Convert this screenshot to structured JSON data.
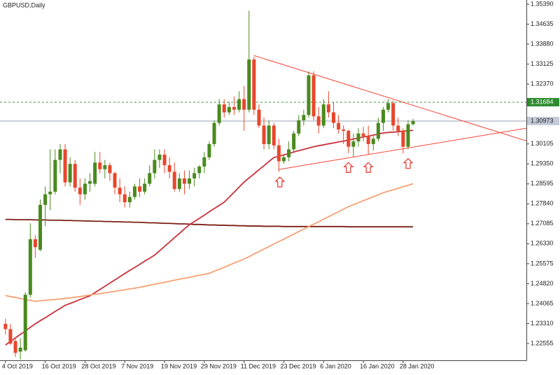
{
  "chart_data": {
    "type": "candlestick",
    "title": "GBPUSD,Daily",
    "categories": [
      "4 Oct 2019",
      null,
      null,
      null,
      null,
      null,
      null,
      null,
      "16 Oct 2019",
      null,
      null,
      null,
      null,
      null,
      null,
      null,
      "28 Oct 2019",
      null,
      null,
      null,
      null,
      null,
      null,
      null,
      "7 Nov 2019",
      null,
      null,
      null,
      null,
      null,
      null,
      null,
      "19 Nov 2019",
      null,
      null,
      null,
      null,
      null,
      null,
      null,
      "29 Nov 2019",
      null,
      null,
      null,
      null,
      null,
      null,
      null,
      "11 Dec 2019",
      null,
      null,
      null,
      null,
      null,
      null,
      null,
      "23 Dec 2019",
      null,
      null,
      null,
      null,
      null,
      null,
      null,
      "6 Jan 2020",
      null,
      null,
      null,
      null,
      null,
      null,
      null,
      "16 Jan 2020",
      null,
      null,
      null,
      null,
      null,
      null,
      null,
      "28 Jan 2020",
      null,
      null
    ],
    "ohlc": {
      "up_color": "#4a8a1e",
      "down_color": "#e8462c",
      "open": [
        1.233,
        1.231,
        1.2265,
        1.2225,
        1.223,
        1.244,
        1.265,
        1.261,
        1.278,
        1.282,
        1.283,
        1.295,
        1.299,
        1.2865,
        1.2935,
        1.2845,
        1.282,
        1.286,
        1.286,
        1.294,
        1.2915,
        1.293,
        1.29,
        1.2845,
        1.282,
        1.279,
        1.281,
        1.285,
        1.283,
        1.286,
        1.29,
        1.295,
        1.297,
        1.293,
        1.2905,
        1.284,
        1.288,
        1.286,
        1.288,
        1.29,
        1.2925,
        1.296,
        1.301,
        1.309,
        1.316,
        1.313,
        1.315,
        1.314,
        1.318,
        1.314,
        1.333,
        1.314,
        1.308,
        1.301,
        1.308,
        1.3005,
        1.2945,
        1.296,
        1.299,
        1.305,
        1.31,
        1.312,
        1.327,
        1.3115,
        1.308,
        1.316,
        1.313,
        1.309,
        1.3065,
        1.306,
        1.3,
        1.302,
        1.305,
        1.304,
        1.301,
        1.303,
        1.309,
        1.314,
        1.3165,
        1.308,
        1.306,
        1.3,
        1.3085
      ],
      "high": [
        1.235,
        1.233,
        1.228,
        1.2275,
        1.245,
        1.271,
        1.2665,
        1.28,
        1.285,
        1.299,
        1.299,
        1.301,
        1.301,
        1.296,
        1.295,
        1.288,
        1.288,
        1.29,
        1.298,
        1.298,
        1.295,
        1.294,
        1.2905,
        1.288,
        1.285,
        1.283,
        1.286,
        1.288,
        1.288,
        1.293,
        1.299,
        1.299,
        1.299,
        1.296,
        1.294,
        1.29,
        1.291,
        1.291,
        1.292,
        1.293,
        1.298,
        1.302,
        1.31,
        1.318,
        1.318,
        1.317,
        1.319,
        1.321,
        1.323,
        1.3515,
        1.334,
        1.316,
        1.311,
        1.31,
        1.309,
        1.303,
        1.297,
        1.302,
        1.306,
        1.312,
        1.314,
        1.3285,
        1.3285,
        1.315,
        1.318,
        1.321,
        1.317,
        1.312,
        1.308,
        1.3065,
        1.305,
        1.307,
        1.3075,
        1.308,
        1.304,
        1.311,
        1.315,
        1.318,
        1.3175,
        1.311,
        1.307,
        1.31,
        1.3105
      ],
      "low": [
        1.229,
        1.225,
        1.2205,
        1.2195,
        1.2225,
        1.243,
        1.258,
        1.2605,
        1.27,
        1.276,
        1.282,
        1.29,
        1.285,
        1.285,
        1.283,
        1.278,
        1.28,
        1.283,
        1.285,
        1.29,
        1.288,
        1.287,
        1.282,
        1.279,
        1.277,
        1.277,
        1.28,
        1.281,
        1.282,
        1.285,
        1.288,
        1.292,
        1.29,
        1.288,
        1.283,
        1.283,
        1.282,
        1.284,
        1.285,
        1.288,
        1.29,
        1.295,
        1.3,
        1.308,
        1.311,
        1.312,
        1.312,
        1.313,
        1.306,
        1.313,
        1.312,
        1.307,
        1.299,
        1.299,
        1.299,
        1.2905,
        1.2935,
        1.2945,
        1.298,
        1.304,
        1.308,
        1.311,
        1.31,
        1.305,
        1.307,
        1.311,
        1.307,
        1.305,
        1.301,
        1.2975,
        1.296,
        1.3,
        1.302,
        1.297,
        1.2985,
        1.302,
        1.306,
        1.313,
        1.306,
        1.304,
        1.2975,
        1.299,
        1.308
      ],
      "close": [
        1.231,
        1.2255,
        1.222,
        1.224,
        1.244,
        1.265,
        1.262,
        1.278,
        1.282,
        1.283,
        1.295,
        1.299,
        1.2865,
        1.2935,
        1.2845,
        1.282,
        1.286,
        1.287,
        1.294,
        1.2915,
        1.293,
        1.29,
        1.2845,
        1.282,
        1.279,
        1.281,
        1.285,
        1.283,
        1.286,
        1.29,
        1.295,
        1.297,
        1.293,
        1.2905,
        1.284,
        1.288,
        1.286,
        1.288,
        1.29,
        1.2925,
        1.296,
        1.301,
        1.309,
        1.316,
        1.313,
        1.315,
        1.314,
        1.318,
        1.314,
        1.333,
        1.314,
        1.308,
        1.301,
        1.308,
        1.3005,
        1.2945,
        1.296,
        1.299,
        1.305,
        1.31,
        1.312,
        1.327,
        1.3115,
        1.308,
        1.316,
        1.313,
        1.309,
        1.3065,
        1.306,
        1.3,
        1.302,
        1.305,
        1.304,
        1.301,
        1.303,
        1.309,
        1.314,
        1.3165,
        1.308,
        1.306,
        1.3,
        1.3085,
        1.3097
      ]
    },
    "moving_averages": [
      {
        "color": "#7b1e12",
        "values": [
          1.2725,
          1.2725,
          1.2724,
          1.2724,
          1.2724,
          1.2724,
          1.2723,
          1.2723,
          1.2723,
          1.2722,
          1.2722,
          1.2722,
          1.2721,
          1.2721,
          1.272,
          1.272,
          1.2719,
          1.2719,
          1.2718,
          1.2718,
          1.2717,
          1.2717,
          1.2716,
          1.2716,
          1.2715,
          1.2715,
          1.2714,
          1.2714,
          1.2713,
          1.2712,
          1.2712,
          1.2711,
          1.271,
          1.271,
          1.2709,
          1.2708,
          1.2708,
          1.2707,
          1.2706,
          1.2706,
          1.2705,
          1.2704,
          1.2704,
          1.2703,
          1.2703,
          1.2702,
          1.2702,
          1.2701,
          1.2701,
          1.27,
          1.27,
          1.27,
          1.2699,
          1.2699,
          1.2699,
          1.2699,
          1.2698,
          1.2698,
          1.2698,
          1.2698,
          1.2698,
          1.2698,
          1.2698,
          1.2698,
          1.2698,
          1.2698,
          1.2698,
          1.2698,
          1.2698,
          1.2697,
          1.2697,
          1.2697,
          1.2697,
          1.2697,
          1.2697,
          1.2697,
          1.2697,
          1.2697,
          1.2697,
          1.2697,
          1.2697,
          1.2697,
          1.2697
        ]
      },
      {
        "color": "#c8323a",
        "values": [
          1.225,
          1.2263,
          1.2277,
          1.229,
          1.2303,
          1.2317,
          1.233,
          1.2342,
          1.2353,
          1.2365,
          1.2377,
          1.2388,
          1.24,
          1.2407,
          1.2414,
          1.2422,
          1.2429,
          1.2436,
          1.2448,
          1.246,
          1.2472,
          1.2484,
          1.2496,
          1.2508,
          1.252,
          1.2532,
          1.2543,
          1.2555,
          1.2567,
          1.2578,
          1.259,
          1.2606,
          1.2623,
          1.2639,
          1.2656,
          1.2672,
          1.2689,
          1.2705,
          1.2717,
          1.2729,
          1.2741,
          1.2754,
          1.2766,
          1.2778,
          1.279,
          1.2809,
          1.2828,
          1.2847,
          1.2866,
          1.2882,
          1.2897,
          1.2913,
          1.2928,
          1.2944,
          1.2959,
          1.2964,
          1.2969,
          1.2974,
          1.298,
          1.2985,
          1.299,
          1.2995,
          1.3,
          1.3004,
          1.3007,
          1.3011,
          1.3014,
          1.3018,
          1.3021,
          1.3025,
          1.3029,
          1.3033,
          1.3037,
          1.304,
          1.3044,
          1.3048,
          1.3052,
          1.3054,
          1.3055,
          1.3057,
          1.3059,
          1.306,
          1.3062
        ]
      },
      {
        "color": "#f7a173",
        "values": [
          1.2437,
          1.2433,
          1.243,
          1.2426,
          1.2422,
          1.2419,
          1.2415,
          1.2417,
          1.2419,
          1.2421,
          1.2422,
          1.2424,
          1.2426,
          1.2428,
          1.2431,
          1.2433,
          1.2436,
          1.2439,
          1.2442,
          1.2444,
          1.2447,
          1.245,
          1.2453,
          1.2456,
          1.2459,
          1.2462,
          1.2465,
          1.2468,
          1.2472,
          1.2476,
          1.248,
          1.2483,
          1.2487,
          1.2491,
          1.2495,
          1.2499,
          1.2502,
          1.2506,
          1.251,
          1.2514,
          1.2517,
          1.2521,
          1.2529,
          1.2536,
          1.2544,
          1.2552,
          1.256,
          1.2567,
          1.2575,
          1.2584,
          1.2594,
          1.2603,
          1.2613,
          1.2622,
          1.2632,
          1.2641,
          1.265,
          1.266,
          1.2669,
          1.2679,
          1.2688,
          1.2698,
          1.2707,
          1.2716,
          1.2726,
          1.2735,
          1.2745,
          1.2754,
          1.2764,
          1.2773,
          1.2781,
          1.2788,
          1.2796,
          1.2803,
          1.2811,
          1.2818,
          1.2826,
          1.2832,
          1.2837,
          1.2843,
          1.2849,
          1.2854,
          1.286
        ]
      }
    ],
    "trendlines": [
      {
        "color": "#f0453a",
        "x": [
          50,
          104.8
        ],
        "values": [
          1.3345,
          1.3022
        ]
      },
      {
        "color": "#f0453a",
        "x": [
          55,
          104.8
        ],
        "values": [
          1.2914,
          1.307
        ]
      }
    ],
    "arrows": {
      "color": "#e8332a",
      "x": [
        55.2,
        69,
        73,
        81
      ],
      "values": [
        1.2885,
        1.294,
        1.294,
        1.2955
      ]
    },
    "levels": [
      {
        "value": 1.31684,
        "color": "#3a9a3a",
        "label_color": "#2e8b2e",
        "style": "dashed"
      },
      {
        "value": 1.30973,
        "color": "#9aa3b5",
        "label_color": "#c3cad8",
        "style": "solid"
      }
    ],
    "xlim": [
      -1.1,
      104.8
    ],
    "ylim": [
      1.2192,
      1.3555
    ],
    "yticks": [
      {
        "value": 1.3539,
        "label": "1.35390"
      },
      {
        "value": 1.34635,
        "label": "1.34635"
      },
      {
        "value": 1.3388,
        "label": "1.33880"
      },
      {
        "value": 1.33125,
        "label": "1.33125"
      },
      {
        "value": 1.3237,
        "label": "1.32370"
      },
      {
        "value": 1.30105,
        "label": "1.30105"
      },
      {
        "value": 1.2935,
        "label": "1.29350"
      },
      {
        "value": 1.28595,
        "label": "1.28595"
      },
      {
        "value": 1.2784,
        "label": "1.27840"
      },
      {
        "value": 1.27085,
        "label": "1.27085"
      },
      {
        "value": 1.2633,
        "label": "1.26330"
      },
      {
        "value": 1.25575,
        "label": "1.25575"
      },
      {
        "value": 1.2482,
        "label": "1.24820"
      },
      {
        "value": 1.24065,
        "label": "1.24065"
      },
      {
        "value": 1.2331,
        "label": "1.23310"
      },
      {
        "value": 1.22555,
        "label": "1.22555"
      }
    ]
  }
}
